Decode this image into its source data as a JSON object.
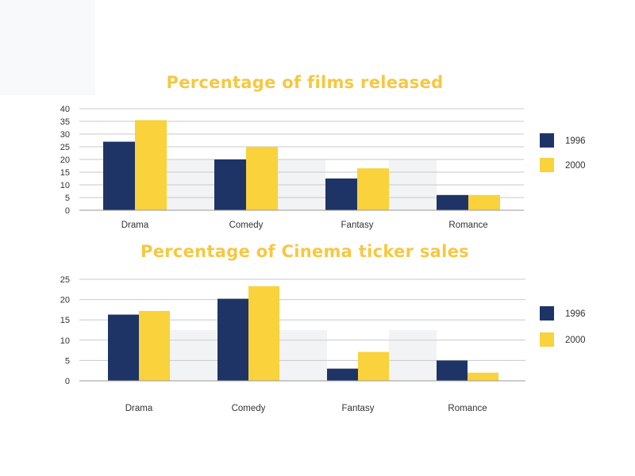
{
  "colors": {
    "y1996": "#1f3466",
    "y2000": "#f9d23c",
    "title": "#f5c842",
    "grid": "#c9c9c9",
    "band": "#f2f3f4"
  },
  "chart_data": [
    {
      "type": "bar",
      "title": "Percentage of films released",
      "categories": [
        "Drama",
        "Comedy",
        "Fantasy",
        "Romance"
      ],
      "series": [
        {
          "name": "1996",
          "values": [
            27,
            20,
            12.5,
            6
          ]
        },
        {
          "name": "2000",
          "values": [
            35.5,
            25,
            16.5,
            6
          ]
        }
      ],
      "ylim": [
        0,
        40
      ],
      "yticks": [
        0,
        5,
        10,
        15,
        20,
        25,
        30,
        35,
        40
      ],
      "grid": true,
      "legend": "right"
    },
    {
      "type": "bar",
      "title": "Percentage of Cinema ticker sales",
      "categories": [
        "Drama",
        "Comedy",
        "Fantasy",
        "Romance"
      ],
      "series": [
        {
          "name": "1996",
          "values": [
            16.3,
            20.2,
            3,
            5
          ]
        },
        {
          "name": "2000",
          "values": [
            17.2,
            23.3,
            7.1,
            2
          ]
        }
      ],
      "ylim": [
        0,
        25
      ],
      "yticks": [
        0,
        5,
        10,
        15,
        20,
        25
      ],
      "grid": true,
      "legend": "right"
    }
  ]
}
